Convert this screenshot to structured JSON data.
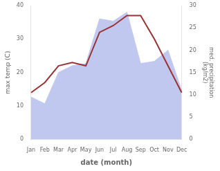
{
  "chart_data": {
    "type": "line",
    "xlabel": "date (month)",
    "ylabel": "max temp (C)",
    "y2label": "med. precipitation\n(kg/m2)",
    "categories": [
      "Jan",
      "Feb",
      "Mar",
      "Apr",
      "May",
      "Jun",
      "Jul",
      "Aug",
      "Sep",
      "Oct",
      "Nov",
      "Dec"
    ],
    "series": [
      {
        "type": "area",
        "color": "#c0c8f0",
        "axis": "y2",
        "values": [
          9.5,
          8.0,
          15.0,
          16.5,
          17.0,
          27.0,
          26.5,
          28.5,
          17.0,
          17.5,
          20.0,
          11.0
        ]
      },
      {
        "type": "line",
        "color": "#993333",
        "values": [
          14.0,
          17.0,
          22.0,
          23.0,
          22.0,
          32.0,
          34.0,
          37.0,
          37.0,
          30.0,
          22.0,
          14.0
        ]
      }
    ],
    "ylim": [
      0,
      40
    ],
    "yticks": [
      0,
      10,
      20,
      30,
      40
    ],
    "y2lim": [
      0,
      30
    ],
    "y2ticks": [
      0,
      5,
      10,
      15,
      20,
      25,
      30
    ],
    "grid": false
  }
}
